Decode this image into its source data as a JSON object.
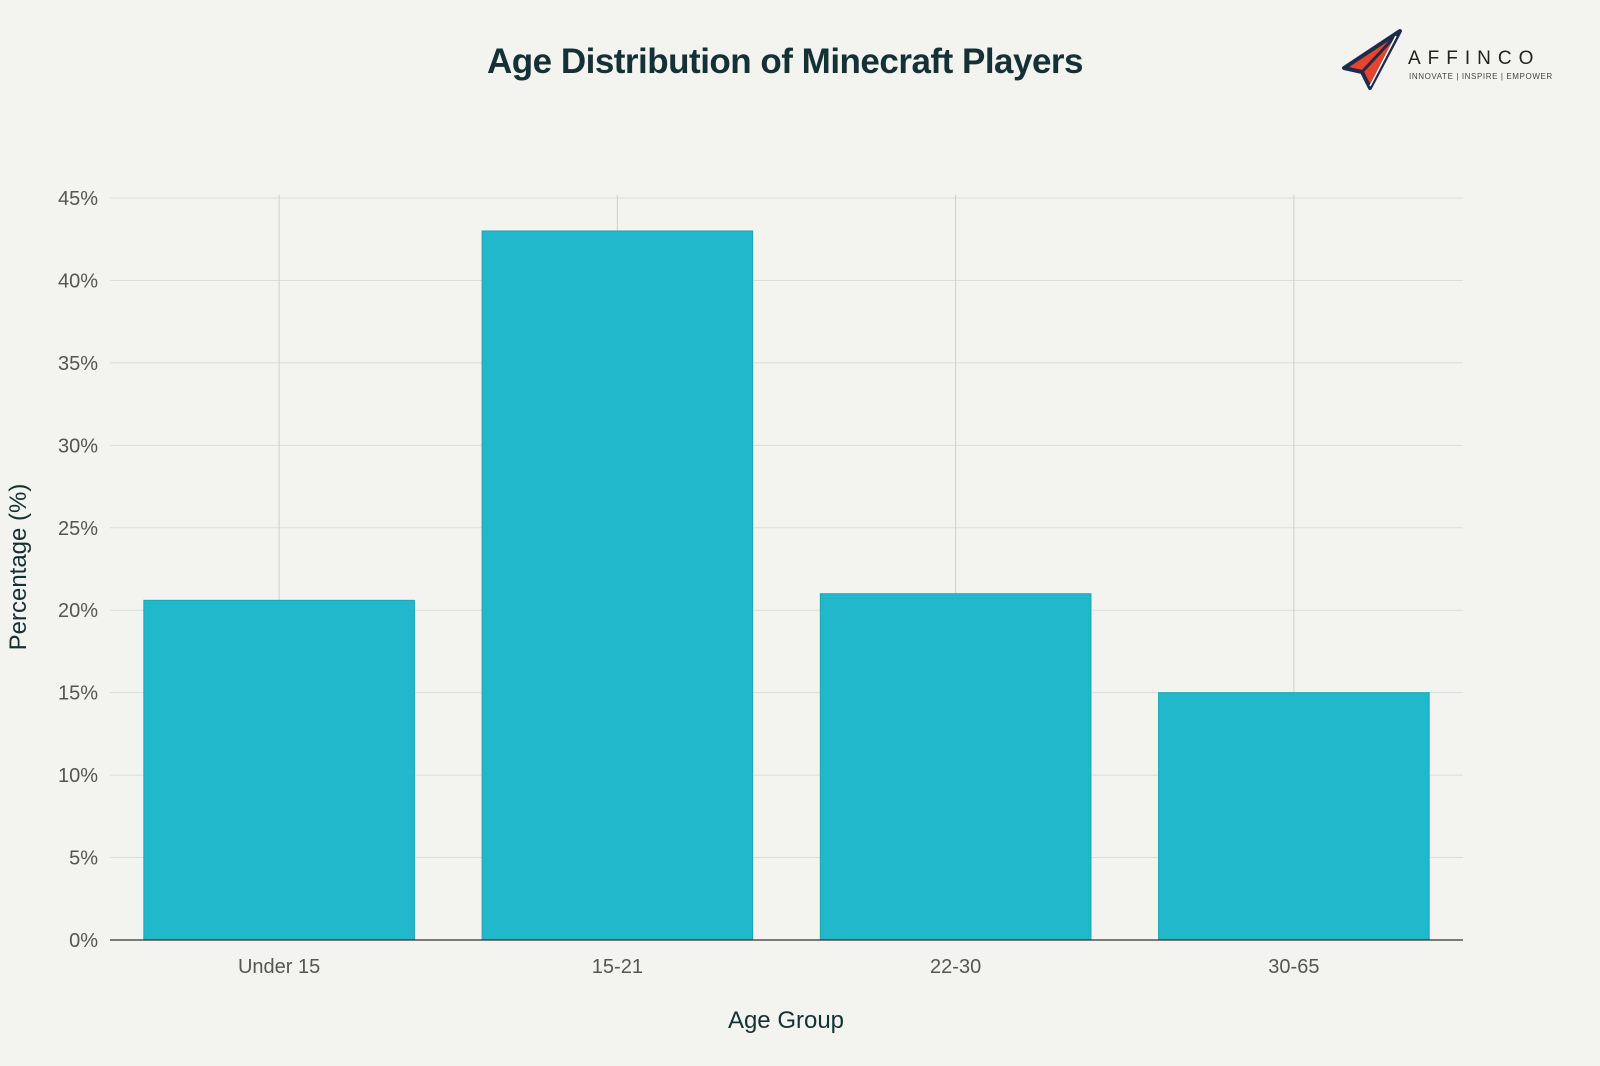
{
  "chart_data": {
    "type": "bar",
    "title": "Age Distribution of Minecraft Players",
    "xlabel": "Age Group",
    "ylabel": "Percentage (%)",
    "categories": [
      "Under 15",
      "15-21",
      "22-30",
      "30-65"
    ],
    "values": [
      20.6,
      43.0,
      21.0,
      15.0
    ],
    "ylim": [
      0,
      45
    ],
    "yticks": [
      0,
      5,
      10,
      15,
      20,
      25,
      30,
      35,
      40,
      45
    ],
    "ytick_suffix": "%",
    "grid": true,
    "bar_color": "#21b8cc"
  },
  "logo": {
    "name": "AFFINCO",
    "tagline": "INNOVATE | INSPIRE | EMPOWER"
  }
}
